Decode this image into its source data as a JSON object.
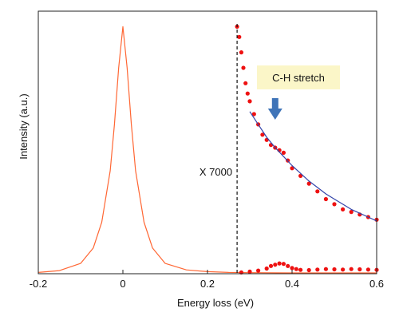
{
  "chart_data": {
    "type": "line",
    "xlabel": "Energy loss (eV)",
    "ylabel": "Intensity (a.u.)",
    "xlim": [
      -0.2,
      0.6
    ],
    "ylim": [
      0,
      1.02
    ],
    "x_ticks": [
      -0.2,
      0.0,
      0.2,
      0.4,
      0.6
    ],
    "x_tick_labels": [
      "-0.2",
      "0",
      "0.2",
      "0.4",
      "0.6"
    ],
    "grid": false,
    "legend": "none",
    "annotations": {
      "scale_factor": "X 7000",
      "scale_line_x": 0.27,
      "feature_label": "C-H stretch",
      "feature_arrow_x": 0.36
    },
    "series": [
      {
        "style": "line",
        "color": "#ff6633",
        "x": [
          -0.2,
          -0.15,
          -0.1,
          -0.07,
          -0.05,
          -0.03,
          -0.02,
          -0.01,
          0.0,
          0.01,
          0.02,
          0.03,
          0.05,
          0.07,
          0.1,
          0.15,
          0.2,
          0.25,
          0.3,
          0.4,
          0.5,
          0.6
        ],
        "y": [
          0.005,
          0.012,
          0.04,
          0.1,
          0.2,
          0.4,
          0.58,
          0.8,
          0.96,
          0.8,
          0.58,
          0.4,
          0.2,
          0.1,
          0.04,
          0.015,
          0.008,
          0.005,
          0.004,
          0.003,
          0.003,
          0.003
        ]
      },
      {
        "style": "points",
        "color": "#ee1111",
        "x": [
          0.27,
          0.275,
          0.28,
          0.285,
          0.29,
          0.295,
          0.3,
          0.31,
          0.32,
          0.33,
          0.34,
          0.35,
          0.36,
          0.37,
          0.38,
          0.39,
          0.4,
          0.42,
          0.44,
          0.46,
          0.48,
          0.5,
          0.52,
          0.54,
          0.56,
          0.58,
          0.6
        ],
        "y": [
          0.96,
          0.92,
          0.86,
          0.8,
          0.74,
          0.7,
          0.67,
          0.62,
          0.58,
          0.54,
          0.52,
          0.5,
          0.49,
          0.48,
          0.47,
          0.44,
          0.41,
          0.38,
          0.35,
          0.32,
          0.29,
          0.27,
          0.25,
          0.24,
          0.23,
          0.22,
          0.21
        ]
      },
      {
        "style": "line",
        "color": "#3344aa",
        "x": [
          0.3,
          0.32,
          0.34,
          0.36,
          0.38,
          0.4,
          0.42,
          0.44,
          0.46,
          0.48,
          0.5,
          0.52,
          0.54,
          0.56,
          0.58,
          0.6
        ],
        "y": [
          0.63,
          0.58,
          0.53,
          0.49,
          0.455,
          0.42,
          0.39,
          0.36,
          0.335,
          0.31,
          0.29,
          0.27,
          0.25,
          0.235,
          0.22,
          0.205
        ]
      },
      {
        "style": "points",
        "color": "#ee1111",
        "x": [
          0.28,
          0.3,
          0.32,
          0.34,
          0.35,
          0.36,
          0.37,
          0.38,
          0.39,
          0.4,
          0.41,
          0.42,
          0.44,
          0.46,
          0.48,
          0.5,
          0.52,
          0.54,
          0.56,
          0.58,
          0.6
        ],
        "y": [
          0.005,
          0.008,
          0.012,
          0.02,
          0.03,
          0.035,
          0.04,
          0.038,
          0.03,
          0.022,
          0.018,
          0.015,
          0.014,
          0.016,
          0.018,
          0.017,
          0.016,
          0.018,
          0.017,
          0.016,
          0.015
        ]
      }
    ]
  }
}
